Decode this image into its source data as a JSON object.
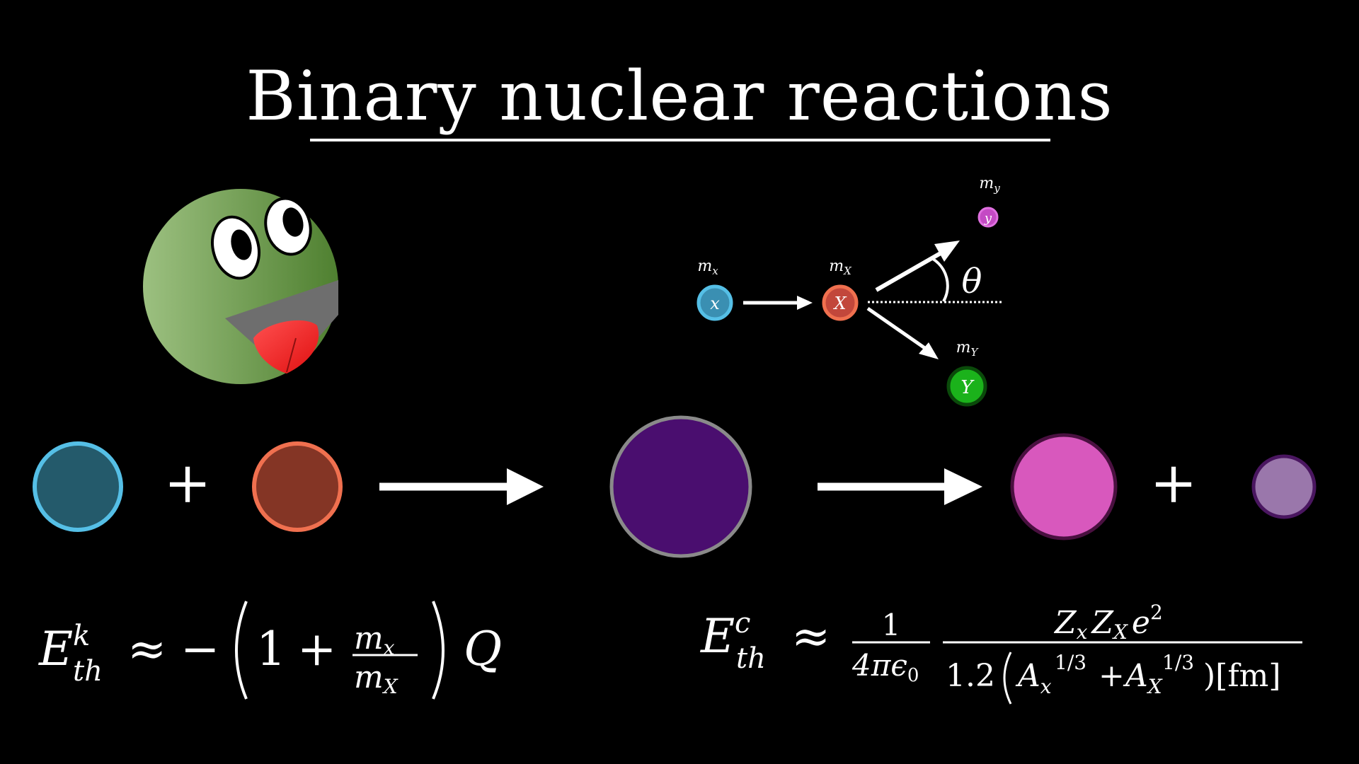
{
  "title": "Binary nuclear reactions",
  "colors": {
    "background": "#000000",
    "x_fill": "#245a6b",
    "x_stroke": "#55bfe6",
    "X_fill": "#843525",
    "X_stroke": "#f0704f",
    "compound_fill": "#4a0e6f",
    "compound_stroke": "#8a8a8a",
    "Y_product_fill": "#d858bd",
    "Y_product_stroke": "#4a1040",
    "y_product_fill": "#9a77ab",
    "y_product_stroke": "#4a1660",
    "small_x": "#3a8fb2",
    "small_X": "#c2473b",
    "small_y": "#c44ac4",
    "small_Y": "#1bb21b",
    "face_green": "#6b9a48",
    "tongue": "#ff3030",
    "mouth": "#6e6e6e"
  },
  "mascot": {
    "icon": "smiling-green-ball-icon"
  },
  "scatter_diagram": {
    "particle_x": {
      "symbol": "x",
      "mass_label": "m",
      "mass_sub": "x"
    },
    "particle_X": {
      "symbol": "X",
      "mass_label": "m",
      "mass_sub": "X"
    },
    "particle_y": {
      "symbol": "y",
      "mass_label": "m",
      "mass_sub": "y"
    },
    "particle_Y": {
      "symbol": "Y",
      "mass_label": "m",
      "mass_sub": "Y"
    },
    "angle_label": "θ"
  },
  "reaction_row": {
    "plus_1": "+",
    "plus_2": "+"
  },
  "equation_kinematic": {
    "E": "E",
    "sup": "k",
    "sub": "th",
    "approx": "≈",
    "minus": "−",
    "one": "1",
    "plus": "+",
    "num_m": "m",
    "num_sub": "x",
    "den_m": "m",
    "den_sub": "X",
    "Q": "Q"
  },
  "equation_coulomb": {
    "E": "E",
    "sup": "c",
    "sub": "th",
    "approx": "≈",
    "f1_num": "1",
    "f1_den": "4πϵ",
    "f1_den_sub": "0",
    "Z1": "Z",
    "Z1_sub": "x",
    "Z2": "Z",
    "Z2_sub": "X",
    "e": "e",
    "e_sup": "2",
    "coef": "1.2",
    "A1": "A",
    "A1_sub": "x",
    "A_sup": "1/3",
    "plus": "+",
    "A2": "A",
    "A2_sub": "X",
    "unit": ")[fm]"
  }
}
